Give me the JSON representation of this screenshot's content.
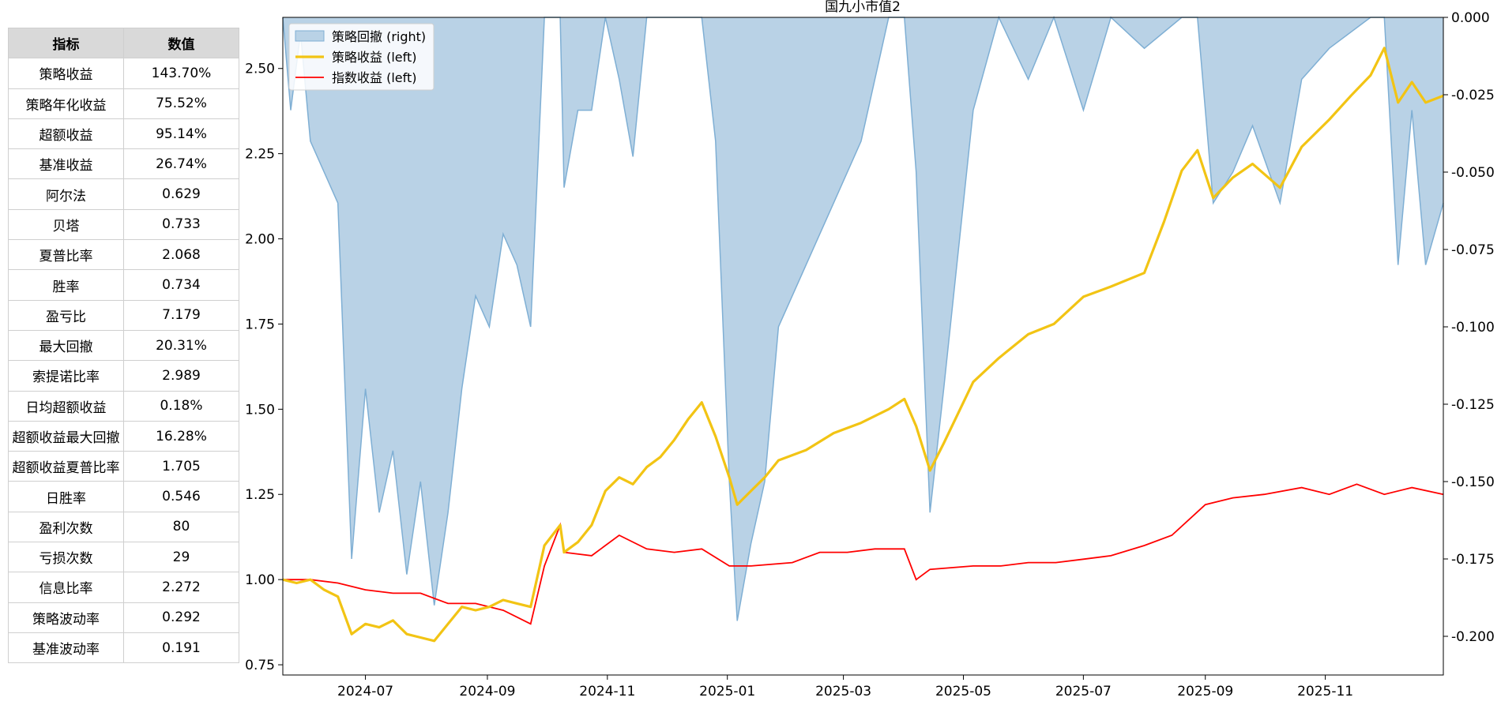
{
  "table": {
    "headers": [
      "指标",
      "数值"
    ],
    "rows": [
      [
        "策略收益",
        "143.70%"
      ],
      [
        "策略年化收益",
        "75.52%"
      ],
      [
        "超额收益",
        "95.14%"
      ],
      [
        "基准收益",
        "26.74%"
      ],
      [
        "阿尔法",
        "0.629"
      ],
      [
        "贝塔",
        "0.733"
      ],
      [
        "夏普比率",
        "2.068"
      ],
      [
        "胜率",
        "0.734"
      ],
      [
        "盈亏比",
        "7.179"
      ],
      [
        "最大回撤",
        "20.31%"
      ],
      [
        "索提诺比率",
        "2.989"
      ],
      [
        "日均超额收益",
        "0.18%"
      ],
      [
        "超额收益最大回撤",
        "16.28%"
      ],
      [
        "超额收益夏普比率",
        "1.705"
      ],
      [
        "日胜率",
        "0.546"
      ],
      [
        "盈利次数",
        "80"
      ],
      [
        "亏损次数",
        "29"
      ],
      [
        "信息比率",
        "2.272"
      ],
      [
        "策略波动率",
        "0.292"
      ],
      [
        "基准波动率",
        "0.191"
      ]
    ]
  },
  "chart_data": {
    "type": "line",
    "title": "国九小市值2",
    "x_range": [
      "2024-05-20",
      "2025-12-31"
    ],
    "x_ticks": [
      "2024-07",
      "2024-09",
      "2024-11",
      "2025-01",
      "2025-03",
      "2025-05",
      "2025-07",
      "2025-09",
      "2025-11"
    ],
    "left_axis": {
      "ylim": [
        0.72,
        2.65
      ],
      "ticks": [
        "0.75",
        "1.00",
        "1.25",
        "1.50",
        "1.75",
        "2.00",
        "2.25",
        "2.50"
      ]
    },
    "right_axis": {
      "ylim": [
        -0.2125,
        0.0
      ],
      "ticks": [
        "0.000",
        "-0.025",
        "-0.050",
        "-0.075",
        "-0.100",
        "-0.125",
        "-0.150",
        "-0.175",
        "-0.200"
      ]
    },
    "legend_position": "top-left",
    "legend": [
      "策略回撤 (right)",
      "策略收益 (left)",
      "指数收益 (left)"
    ],
    "colors": {
      "drawdown_fill": "#b9d2e6",
      "drawdown_line": "#7fafd4",
      "strategy": "#f2c414",
      "index": "#ff0000"
    },
    "series": [
      {
        "name": "策略收益 (left)",
        "axis": "left",
        "points": [
          [
            "2024-05-20",
            1.0
          ],
          [
            "2024-05-27",
            0.99
          ],
          [
            "2024-06-03",
            1.0
          ],
          [
            "2024-06-10",
            0.97
          ],
          [
            "2024-06-17",
            0.95
          ],
          [
            "2024-06-24",
            0.84
          ],
          [
            "2024-07-01",
            0.87
          ],
          [
            "2024-07-08",
            0.86
          ],
          [
            "2024-07-15",
            0.88
          ],
          [
            "2024-07-22",
            0.84
          ],
          [
            "2024-07-29",
            0.83
          ],
          [
            "2024-08-05",
            0.82
          ],
          [
            "2024-08-12",
            0.87
          ],
          [
            "2024-08-19",
            0.92
          ],
          [
            "2024-08-26",
            0.91
          ],
          [
            "2024-09-02",
            0.92
          ],
          [
            "2024-09-09",
            0.94
          ],
          [
            "2024-09-16",
            0.93
          ],
          [
            "2024-09-23",
            0.92
          ],
          [
            "2024-09-30",
            1.1
          ],
          [
            "2024-10-08",
            1.16
          ],
          [
            "2024-10-10",
            1.08
          ],
          [
            "2024-10-17",
            1.11
          ],
          [
            "2024-10-24",
            1.16
          ],
          [
            "2024-10-31",
            1.26
          ],
          [
            "2024-11-07",
            1.3
          ],
          [
            "2024-11-14",
            1.28
          ],
          [
            "2024-11-21",
            1.33
          ],
          [
            "2024-11-28",
            1.36
          ],
          [
            "2024-12-05",
            1.41
          ],
          [
            "2024-12-12",
            1.47
          ],
          [
            "2024-12-19",
            1.52
          ],
          [
            "2024-12-26",
            1.42
          ],
          [
            "2025-01-02",
            1.3
          ],
          [
            "2025-01-06",
            1.22
          ],
          [
            "2025-01-13",
            1.26
          ],
          [
            "2025-01-20",
            1.3
          ],
          [
            "2025-01-27",
            1.35
          ],
          [
            "2025-02-10",
            1.38
          ],
          [
            "2025-02-24",
            1.43
          ],
          [
            "2025-03-10",
            1.46
          ],
          [
            "2025-03-24",
            1.5
          ],
          [
            "2025-04-01",
            1.53
          ],
          [
            "2025-04-07",
            1.45
          ],
          [
            "2025-04-14",
            1.32
          ],
          [
            "2025-04-21",
            1.4
          ],
          [
            "2025-05-06",
            1.58
          ],
          [
            "2025-05-19",
            1.65
          ],
          [
            "2025-06-03",
            1.72
          ],
          [
            "2025-06-16",
            1.75
          ],
          [
            "2025-07-01",
            1.83
          ],
          [
            "2025-07-15",
            1.86
          ],
          [
            "2025-08-01",
            1.9
          ],
          [
            "2025-08-11",
            2.05
          ],
          [
            "2025-08-20",
            2.2
          ],
          [
            "2025-08-28",
            2.26
          ],
          [
            "2025-09-05",
            2.12
          ],
          [
            "2025-09-15",
            2.18
          ],
          [
            "2025-09-25",
            2.22
          ],
          [
            "2025-10-09",
            2.15
          ],
          [
            "2025-10-20",
            2.27
          ],
          [
            "2025-11-03",
            2.35
          ],
          [
            "2025-11-14",
            2.42
          ],
          [
            "2025-11-24",
            2.48
          ],
          [
            "2025-12-01",
            2.56
          ],
          [
            "2025-12-08",
            2.4
          ],
          [
            "2025-12-15",
            2.46
          ],
          [
            "2025-12-22",
            2.4
          ],
          [
            "2025-12-31",
            2.42
          ]
        ]
      },
      {
        "name": "指数收益 (left)",
        "axis": "left",
        "points": [
          [
            "2024-05-20",
            1.0
          ],
          [
            "2024-06-03",
            1.0
          ],
          [
            "2024-06-17",
            0.99
          ],
          [
            "2024-07-01",
            0.97
          ],
          [
            "2024-07-15",
            0.96
          ],
          [
            "2024-07-29",
            0.96
          ],
          [
            "2024-08-12",
            0.93
          ],
          [
            "2024-08-26",
            0.93
          ],
          [
            "2024-09-09",
            0.91
          ],
          [
            "2024-09-23",
            0.87
          ],
          [
            "2024-09-30",
            1.04
          ],
          [
            "2024-10-08",
            1.16
          ],
          [
            "2024-10-10",
            1.08
          ],
          [
            "2024-10-24",
            1.07
          ],
          [
            "2024-11-07",
            1.13
          ],
          [
            "2024-11-21",
            1.09
          ],
          [
            "2024-12-05",
            1.08
          ],
          [
            "2024-12-19",
            1.09
          ],
          [
            "2025-01-02",
            1.04
          ],
          [
            "2025-01-13",
            1.04
          ],
          [
            "2025-02-03",
            1.05
          ],
          [
            "2025-02-17",
            1.08
          ],
          [
            "2025-03-03",
            1.08
          ],
          [
            "2025-03-17",
            1.09
          ],
          [
            "2025-04-01",
            1.09
          ],
          [
            "2025-04-07",
            1.0
          ],
          [
            "2025-04-14",
            1.03
          ],
          [
            "2025-05-06",
            1.04
          ],
          [
            "2025-05-20",
            1.04
          ],
          [
            "2025-06-03",
            1.05
          ],
          [
            "2025-06-17",
            1.05
          ],
          [
            "2025-07-01",
            1.06
          ],
          [
            "2025-07-15",
            1.07
          ],
          [
            "2025-08-01",
            1.1
          ],
          [
            "2025-08-15",
            1.13
          ],
          [
            "2025-09-01",
            1.22
          ],
          [
            "2025-09-15",
            1.24
          ],
          [
            "2025-10-01",
            1.25
          ],
          [
            "2025-10-20",
            1.27
          ],
          [
            "2025-11-03",
            1.25
          ],
          [
            "2025-11-17",
            1.28
          ],
          [
            "2025-12-01",
            1.25
          ],
          [
            "2025-12-15",
            1.27
          ],
          [
            "2025-12-31",
            1.25
          ]
        ]
      },
      {
        "name": "策略回撤 (right)",
        "axis": "right",
        "type": "area",
        "points": [
          [
            "2024-05-20",
            0.0
          ],
          [
            "2024-05-24",
            -0.03
          ],
          [
            "2024-05-29",
            -0.005
          ],
          [
            "2024-06-03",
            -0.04
          ],
          [
            "2024-06-10",
            -0.05
          ],
          [
            "2024-06-17",
            -0.06
          ],
          [
            "2024-06-24",
            -0.175
          ],
          [
            "2024-07-01",
            -0.12
          ],
          [
            "2024-07-08",
            -0.16
          ],
          [
            "2024-07-15",
            -0.14
          ],
          [
            "2024-07-22",
            -0.18
          ],
          [
            "2024-07-29",
            -0.15
          ],
          [
            "2024-08-05",
            -0.19
          ],
          [
            "2024-08-12",
            -0.16
          ],
          [
            "2024-08-19",
            -0.12
          ],
          [
            "2024-08-26",
            -0.09
          ],
          [
            "2024-09-02",
            -0.1
          ],
          [
            "2024-09-09",
            -0.07
          ],
          [
            "2024-09-16",
            -0.08
          ],
          [
            "2024-09-23",
            -0.1
          ],
          [
            "2024-09-30",
            0.0
          ],
          [
            "2024-10-08",
            0.0
          ],
          [
            "2024-10-10",
            -0.055
          ],
          [
            "2024-10-17",
            -0.03
          ],
          [
            "2024-10-24",
            -0.03
          ],
          [
            "2024-10-31",
            0.0
          ],
          [
            "2024-11-07",
            -0.02
          ],
          [
            "2024-11-14",
            -0.045
          ],
          [
            "2024-11-21",
            0.0
          ],
          [
            "2024-12-05",
            0.0
          ],
          [
            "2024-12-19",
            0.0
          ],
          [
            "2024-12-26",
            -0.04
          ],
          [
            "2025-01-02",
            -0.15
          ],
          [
            "2025-01-06",
            -0.195
          ],
          [
            "2025-01-13",
            -0.17
          ],
          [
            "2025-01-20",
            -0.15
          ],
          [
            "2025-01-27",
            -0.1
          ],
          [
            "2025-02-10",
            -0.08
          ],
          [
            "2025-02-24",
            -0.06
          ],
          [
            "2025-03-10",
            -0.04
          ],
          [
            "2025-03-24",
            0.0
          ],
          [
            "2025-04-01",
            0.0
          ],
          [
            "2025-04-07",
            -0.05
          ],
          [
            "2025-04-14",
            -0.16
          ],
          [
            "2025-04-21",
            -0.12
          ],
          [
            "2025-05-06",
            -0.03
          ],
          [
            "2025-05-19",
            0.0
          ],
          [
            "2025-06-03",
            -0.02
          ],
          [
            "2025-06-16",
            0.0
          ],
          [
            "2025-07-01",
            -0.03
          ],
          [
            "2025-07-15",
            0.0
          ],
          [
            "2025-08-01",
            -0.01
          ],
          [
            "2025-08-20",
            0.0
          ],
          [
            "2025-08-28",
            0.0
          ],
          [
            "2025-09-05",
            -0.06
          ],
          [
            "2025-09-15",
            -0.05
          ],
          [
            "2025-09-25",
            -0.035
          ],
          [
            "2025-10-09",
            -0.06
          ],
          [
            "2025-10-20",
            -0.02
          ],
          [
            "2025-11-03",
            -0.01
          ],
          [
            "2025-11-24",
            0.0
          ],
          [
            "2025-12-01",
            0.0
          ],
          [
            "2025-12-08",
            -0.08
          ],
          [
            "2025-12-15",
            -0.03
          ],
          [
            "2025-12-22",
            -0.08
          ],
          [
            "2025-12-31",
            -0.06
          ]
        ]
      }
    ]
  }
}
